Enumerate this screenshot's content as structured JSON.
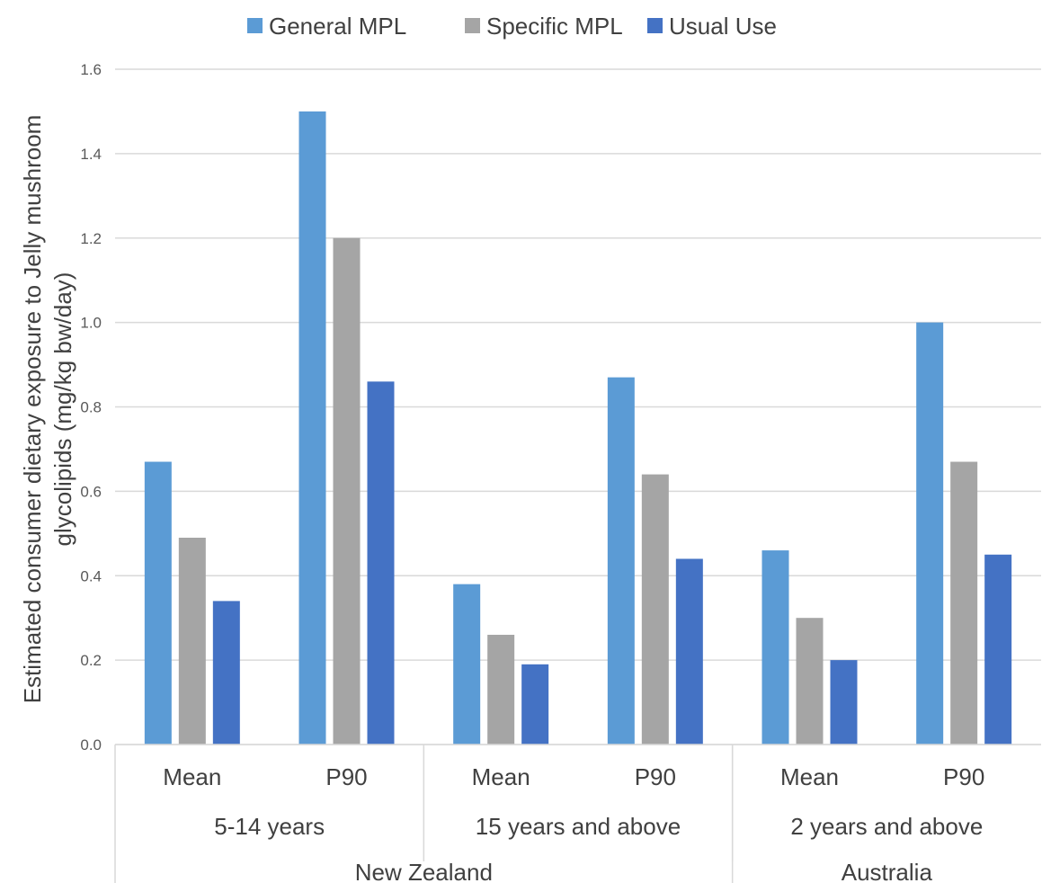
{
  "chart_data": {
    "type": "bar",
    "title": "",
    "xlabel": "",
    "ylabel": "Estimated consumer dietary exposure to Jelly mushroom glycolipids (mg/kg bw/day)",
    "ylabel_lines": [
      "Estimated consumer dietary exposure to Jelly mushroom",
      "glycolipids (mg/kg bw/day)"
    ],
    "ylim": [
      0,
      1.6
    ],
    "yticks": [
      "0.0",
      "0.2",
      "0.4",
      "0.6",
      "0.8",
      "1.0",
      "1.2",
      "1.4",
      "1.6"
    ],
    "grid": true,
    "legend_position": "top",
    "categories": [
      "Mean",
      "P90",
      "Mean",
      "P90",
      "Mean",
      "P90"
    ],
    "groups": [
      {
        "label": "5-14 years",
        "span": 2
      },
      {
        "label": "15 years and above",
        "span": 2
      },
      {
        "label": "2 years and above",
        "span": 2
      }
    ],
    "regions": [
      {
        "label": "New Zealand",
        "span": 4
      },
      {
        "label": "Australia",
        "span": 2
      }
    ],
    "series": [
      {
        "name": "General MPL",
        "color": "#5b9bd5",
        "values": [
          0.67,
          1.5,
          0.38,
          0.87,
          0.46,
          1.0
        ]
      },
      {
        "name": "Specific MPL",
        "color": "#a5a5a5",
        "values": [
          0.49,
          1.2,
          0.26,
          0.64,
          0.3,
          0.67
        ]
      },
      {
        "name": "Usual Use",
        "color": "#4472c4",
        "values": [
          0.34,
          0.86,
          0.19,
          0.44,
          0.2,
          0.45
        ]
      }
    ]
  }
}
